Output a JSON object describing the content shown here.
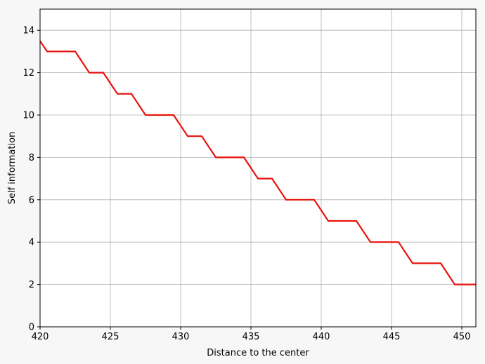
{
  "chart_data": {
    "type": "line",
    "title": "",
    "xlabel": "Distance to the center",
    "ylabel": "Self information",
    "xlim": [
      420,
      451
    ],
    "ylim": [
      0,
      15
    ],
    "xticks": [
      420,
      425,
      430,
      435,
      440,
      445,
      450
    ],
    "yticks": [
      0,
      2,
      4,
      6,
      8,
      10,
      12,
      14
    ],
    "grid": true,
    "colors": {
      "line": "#e8120c",
      "grid": "#b0b0b0",
      "plot_bg": "#ffffff",
      "figure_bg": "#f7f7f7"
    },
    "series": [
      {
        "x": [
          420,
          420.5,
          422.5,
          423.5,
          424.5,
          425.5,
          426.5,
          427.5,
          429.5,
          430.5,
          431.5,
          432.5,
          434.5,
          435.5,
          436.5,
          437.5,
          439.5,
          440.5,
          442.5,
          443.5,
          445.5,
          446.5,
          448.5,
          449.5,
          451
        ],
        "y": [
          13.5,
          13,
          13,
          12,
          12,
          11,
          11,
          10,
          10,
          9,
          9,
          8,
          8,
          7,
          7,
          6,
          6,
          5,
          5,
          4,
          4,
          3,
          3,
          2,
          2
        ]
      }
    ]
  }
}
